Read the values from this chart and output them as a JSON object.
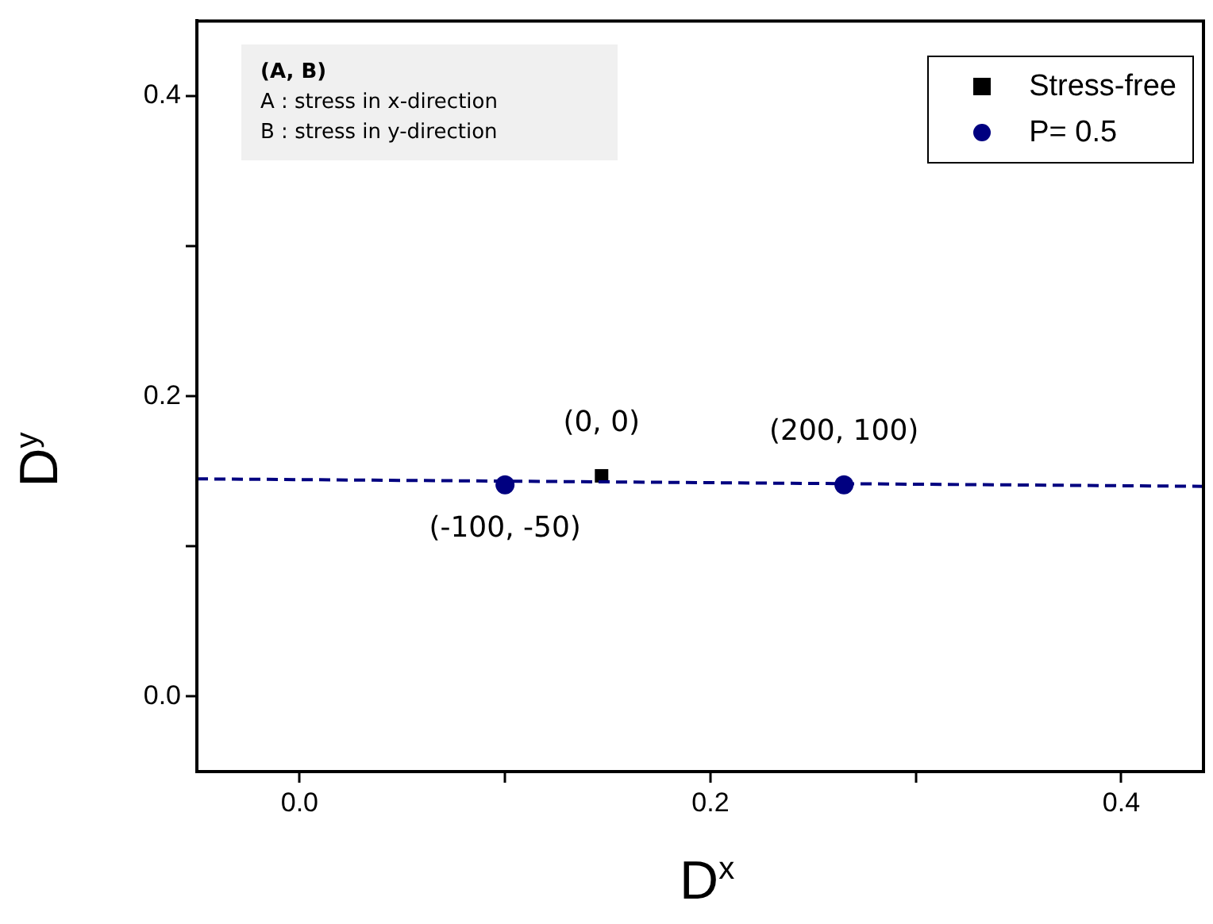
{
  "chart_data": {
    "type": "scatter",
    "xlabel": "D$^{x}$",
    "ylabel": "D$^{y}$",
    "xlim": [
      -0.05,
      0.44
    ],
    "ylim": [
      -0.05,
      0.45
    ],
    "xticks": [
      {
        "value": 0,
        "label": "0.0"
      },
      {
        "value": 0.1,
        "label": null
      },
      0.2,
      {
        "value": 0.3,
        "label": null
      },
      0.4
    ],
    "yticks": [
      {
        "value": 0,
        "label": "0.0"
      },
      {
        "value": 0.1,
        "label": null
      },
      0.2,
      {
        "value": 0.3,
        "label": null
      },
      0.4
    ],
    "legend": "top right",
    "series": [
      {
        "type": "line",
        "color": "#000080",
        "x": [
          -0.05,
          0.44
        ],
        "values": [
          0.145,
          0.14
        ],
        "marker": "none",
        "line_style": "dashed"
      },
      {
        "name": "Stress-free",
        "color": "#000000",
        "x": [
          0.147
        ],
        "values": [
          0.147
        ],
        "marker": "square"
      },
      {
        "name": "P= 0.5",
        "color": "#000080",
        "x": [
          0.1,
          0.265
        ],
        "values": [
          0.141,
          0.141
        ],
        "marker": "circle"
      }
    ],
    "annotations": [
      "(A, B)",
      "A : stress in x-direction",
      "B : stress in y-direction",
      {
        "text": "(0, 0)",
        "x": 0.147,
        "y": 0.147
      },
      {
        "text": "(-100, -50)",
        "x": 0.1,
        "y": 0.141
      },
      {
        "text": "(200, 100)",
        "x": 0.265,
        "y": 0.141
      }
    ]
  }
}
